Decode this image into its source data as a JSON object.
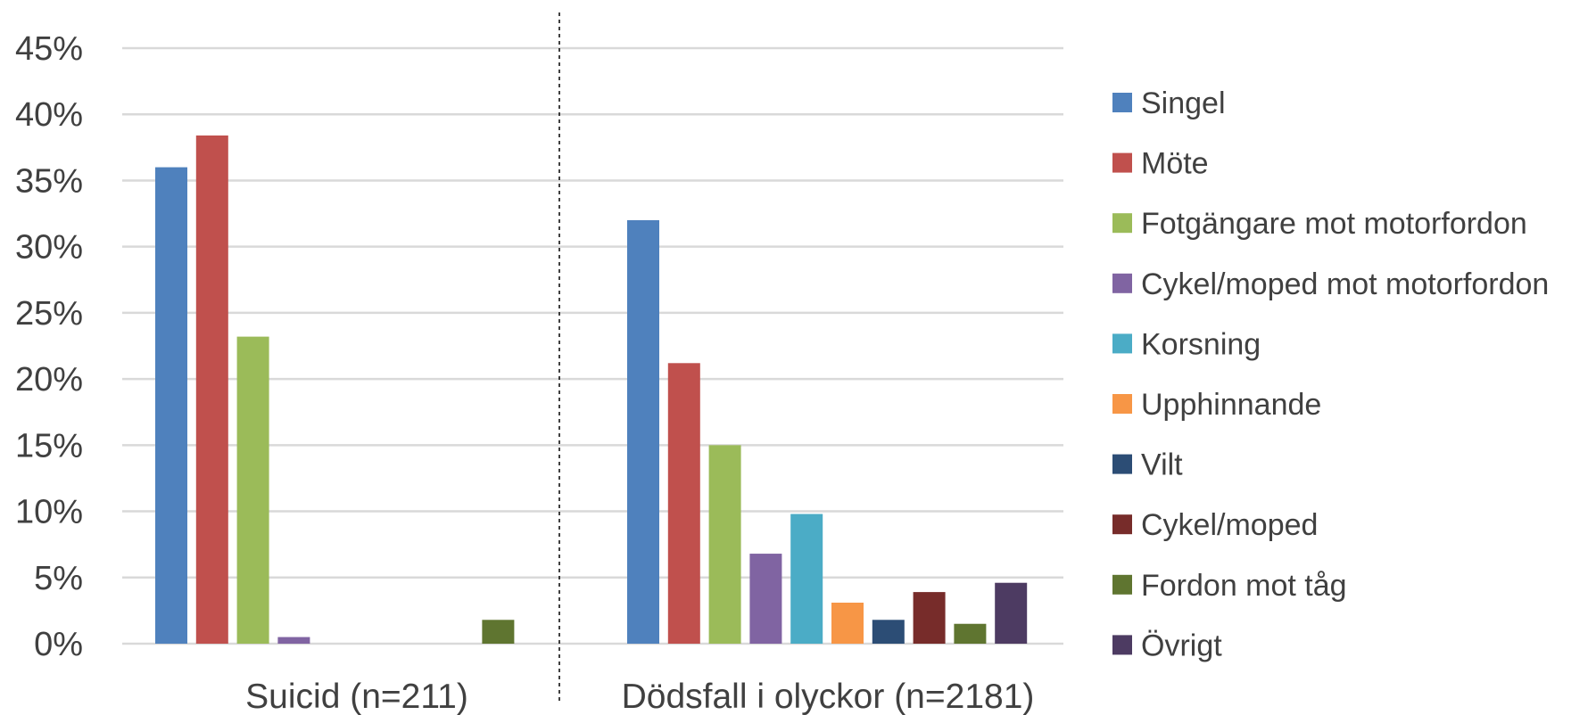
{
  "chart_data": {
    "type": "bar",
    "categories": [
      "Suicid (n=211)",
      "Dödsfall i olyckor (n=2181)"
    ],
    "series": [
      {
        "name": "Singel",
        "color": "#4F81BD",
        "values": [
          36.0,
          32.0
        ]
      },
      {
        "name": "Möte",
        "color": "#C0504D",
        "values": [
          38.4,
          21.2
        ]
      },
      {
        "name": "Fotgängare mot motorfordon",
        "color": "#9BBB59",
        "values": [
          23.2,
          15.0
        ]
      },
      {
        "name": "Cykel/moped mot motorfordon",
        "color": "#8064A2",
        "values": [
          0.5,
          6.8
        ]
      },
      {
        "name": "Korsning",
        "color": "#4BACC6",
        "values": [
          0,
          9.8
        ]
      },
      {
        "name": "Upphinnande",
        "color": "#F79646",
        "values": [
          0,
          3.1
        ]
      },
      {
        "name": "Vilt",
        "color": "#2C4D75",
        "values": [
          0,
          1.8
        ]
      },
      {
        "name": "Cykel/moped",
        "color": "#772C2A",
        "values": [
          0,
          3.9
        ]
      },
      {
        "name": "Fordon mot tåg",
        "color": "#5F7530",
        "values": [
          1.8,
          1.5
        ]
      },
      {
        "name": "Övrigt",
        "color": "#4D3B62",
        "values": [
          0,
          4.6
        ]
      }
    ],
    "yticks": [
      "0%",
      "5%",
      "10%",
      "15%",
      "20%",
      "25%",
      "30%",
      "35%",
      "40%",
      "45%"
    ],
    "ylim": [
      0,
      45
    ],
    "grid": true,
    "legend": "right",
    "separator": "dashed vertical line between categories"
  }
}
